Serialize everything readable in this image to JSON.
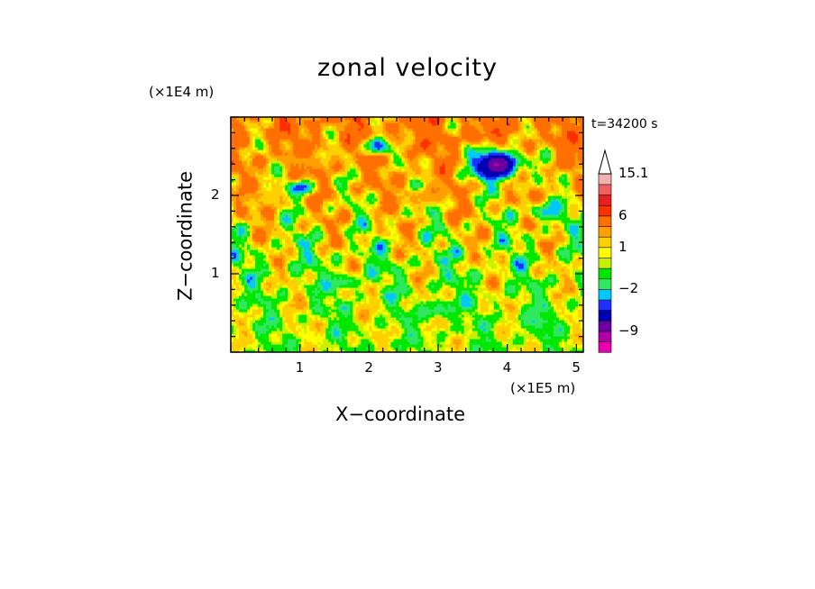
{
  "chart_data": {
    "type": "heatmap",
    "title": "zonal velocity",
    "xlabel": "X−coordinate",
    "ylabel": "Z−coordinate",
    "x_unit": "(×1E5 m)",
    "y_unit": "(×1E4 m)",
    "annotation": "t=34200 s",
    "xlim": [
      0,
      5.1
    ],
    "ylim": [
      0,
      3.0
    ],
    "x_ticks": [
      1,
      2,
      3,
      4,
      5
    ],
    "y_ticks": [
      1,
      2
    ],
    "x_tick_labels": [
      "1",
      "2",
      "3",
      "4",
      "5"
    ],
    "y_tick_labels": [
      "1",
      "2"
    ],
    "colorbar": {
      "levels": [
        -14,
        -12,
        -9,
        -7,
        -4.5,
        -3,
        -2,
        -1,
        0,
        0.5,
        1,
        2,
        3,
        6,
        8.5,
        11,
        13,
        15.1
      ],
      "labeled": [
        {
          "value": 15.1,
          "text": "15.1"
        },
        {
          "value": 6,
          "text": "6"
        },
        {
          "value": 1,
          "text": "1"
        },
        {
          "value": -2,
          "text": "−2"
        },
        {
          "value": -9,
          "text": "−9"
        }
      ],
      "colors": [
        "#e800b0",
        "#b000a8",
        "#6a00a0",
        "#0000b0",
        "#2030ff",
        "#00c8ff",
        "#30e860",
        "#00e800",
        "#c8f000",
        "#ffff00",
        "#ffd000",
        "#ffa000",
        "#ff7000",
        "#ff3000",
        "#e82020",
        "#f06060",
        "#f4b0b0"
      ]
    },
    "field_regions": [
      {
        "x": 2.15,
        "z": 2.65,
        "value": -5,
        "rx": 0.18,
        "rz": 0.12
      },
      {
        "x": 3.85,
        "z": 2.4,
        "value": -9,
        "rx": 0.35,
        "rz": 0.2
      },
      {
        "x": 1.0,
        "z": 2.1,
        "value": -4,
        "rx": 0.2,
        "rz": 0.1
      },
      {
        "x": 2.4,
        "z": 2.75,
        "value": 3,
        "rx": 0.2,
        "rz": 0.12
      },
      {
        "x": 3.55,
        "z": 2.75,
        "value": 4,
        "rx": 0.15,
        "rz": 0.1
      },
      {
        "x": 1.15,
        "z": 2.45,
        "value": 2.5,
        "rx": 0.3,
        "rz": 0.12
      },
      {
        "x": 2.8,
        "z": 2.0,
        "value": 2.5,
        "rx": 0.35,
        "rz": 0.1
      },
      {
        "x": 0.5,
        "z": 2.0,
        "value": 2,
        "rx": 0.3,
        "rz": 0.1
      },
      {
        "x": 3.0,
        "z": 0.55,
        "value": -1.5,
        "rx": 0.3,
        "rz": 0.12
      },
      {
        "x": 4.4,
        "z": 0.4,
        "value": -1.8,
        "rx": 0.25,
        "rz": 0.1
      },
      {
        "x": 1.6,
        "z": 0.9,
        "value": -1.5,
        "rx": 0.25,
        "rz": 0.1
      },
      {
        "x": 4.6,
        "z": 1.8,
        "value": -2.5,
        "rx": 0.3,
        "rz": 0.12
      }
    ]
  }
}
